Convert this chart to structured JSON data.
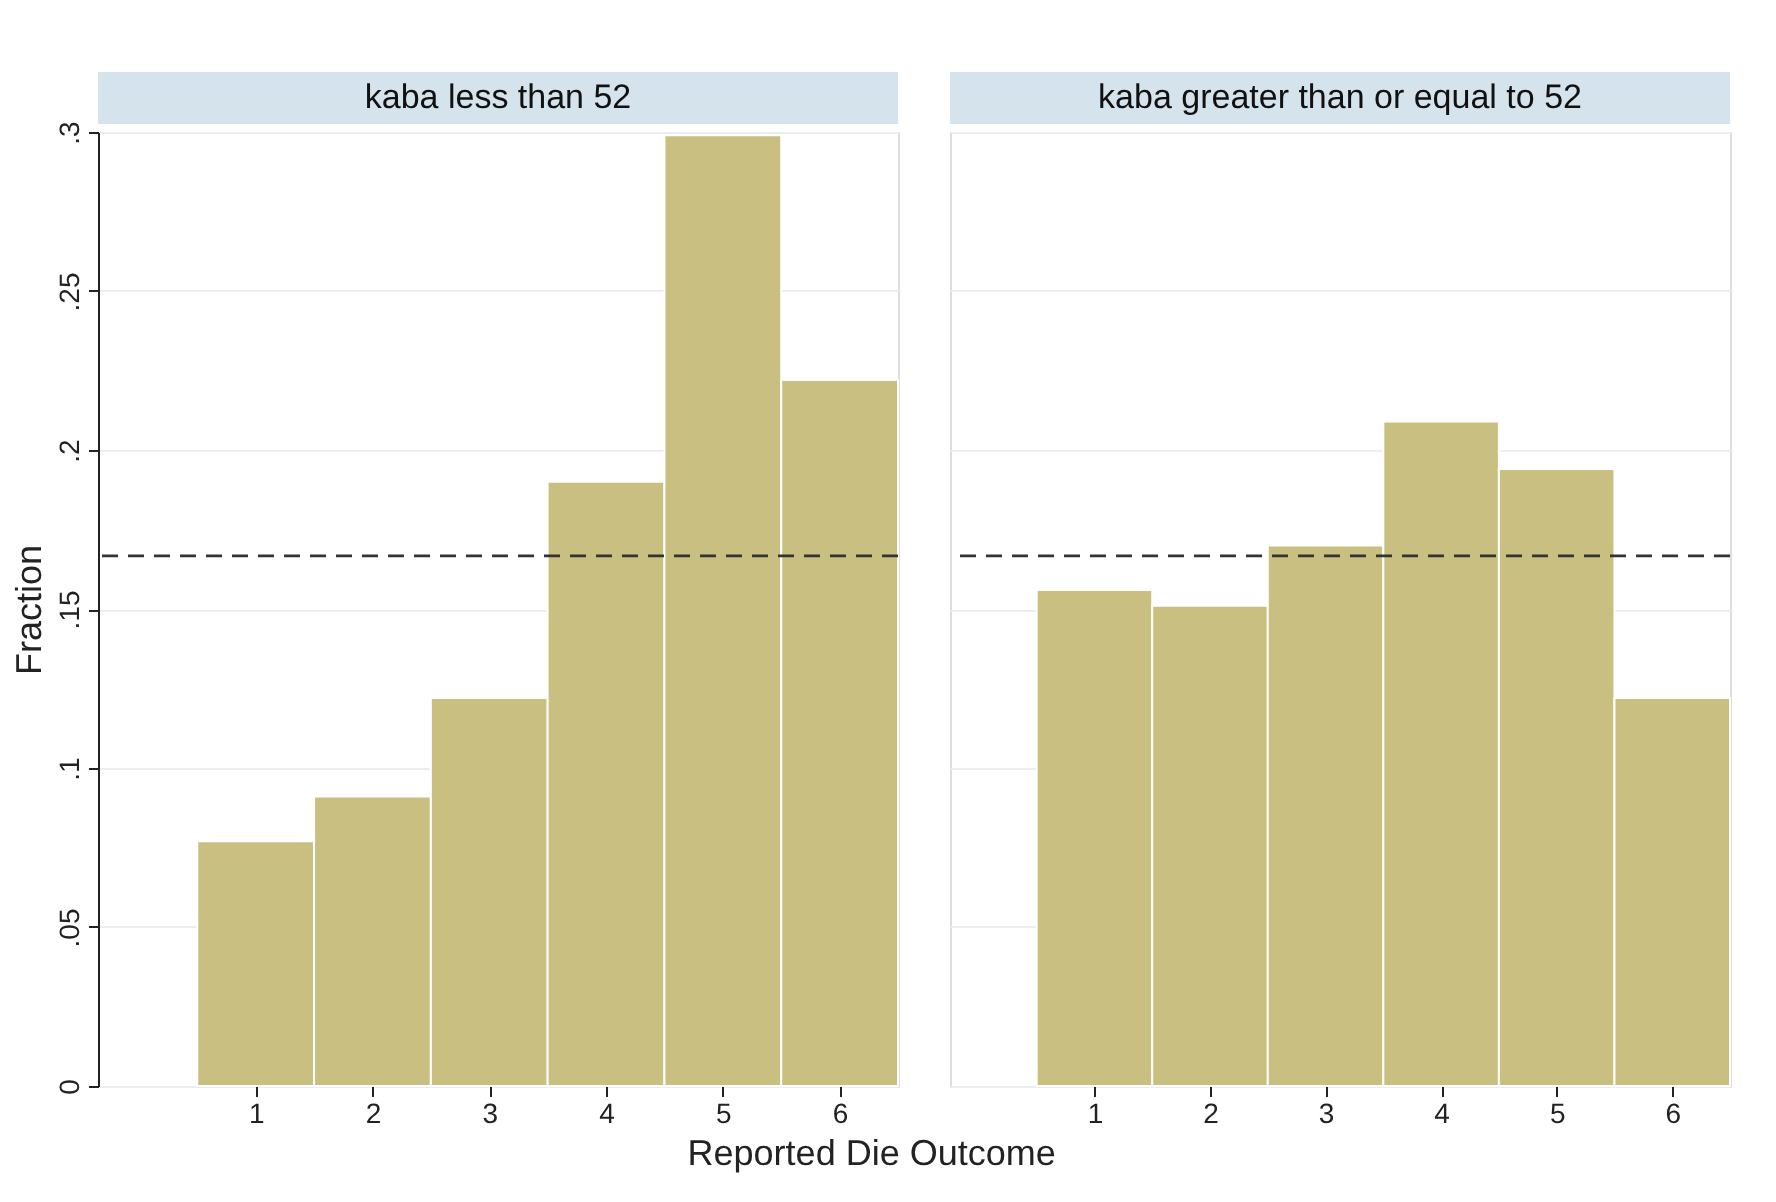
{
  "chart_data": [
    {
      "type": "histogram",
      "title": "kaba less than 52",
      "xlabel": "Reported Die Outcome",
      "ylabel": "Fraction",
      "bins": [
        0.5,
        1.5,
        2.5,
        3.5,
        4.5,
        5.5,
        6.5
      ],
      "values": [
        0.077,
        0.091,
        0.122,
        0.19,
        0.299,
        0.222
      ],
      "color": "#c9bf80",
      "xlim": [
        -0.35,
        6.5
      ],
      "xticks": [
        1,
        2,
        3,
        4,
        5,
        6
      ],
      "ylim": [
        0,
        0.3
      ],
      "yticks": [
        0,
        {
          "value": 0.05,
          "label": ".05"
        },
        {
          "value": 0.1,
          "label": ".1"
        },
        {
          "value": 0.15,
          "label": ".15"
        },
        {
          "value": 0.2,
          "label": ".2"
        },
        {
          "value": 0.25,
          "label": ".25"
        },
        {
          "value": 0.3,
          "label": ".3"
        }
      ],
      "grid": "y",
      "ref_lines": [
        {
          "axis": "y",
          "value": 0.1667,
          "color": "#333333",
          "line_style": "dashed"
        }
      ]
    },
    {
      "type": "histogram",
      "title": "kaba greater than or equal to 52",
      "bins": [
        0.5,
        1.5,
        2.5,
        3.5,
        4.5,
        5.5,
        6.5
      ],
      "values": [
        0.156,
        0.151,
        0.17,
        0.209,
        0.194,
        0.122
      ],
      "color": "#c9bf80",
      "xlim": [
        -0.25,
        6.5
      ],
      "xticks": [
        1,
        2,
        3,
        4,
        5,
        6
      ],
      "ylim": [
        0,
        0.3
      ],
      "yticks": [
        {
          "value": 0,
          "label": null
        },
        {
          "value": 0.05,
          "label": null
        },
        {
          "value": 0.1,
          "label": null
        },
        {
          "value": 0.15,
          "label": null
        },
        {
          "value": 0.2,
          "label": null
        },
        {
          "value": 0.25,
          "label": null
        },
        {
          "value": 0.3,
          "label": null
        }
      ],
      "grid": "y",
      "tick_labels": "x",
      "ref_lines": [
        {
          "axis": "y",
          "value": 0.1667,
          "color": "#333333",
          "line_style": "dashed"
        }
      ]
    }
  ]
}
